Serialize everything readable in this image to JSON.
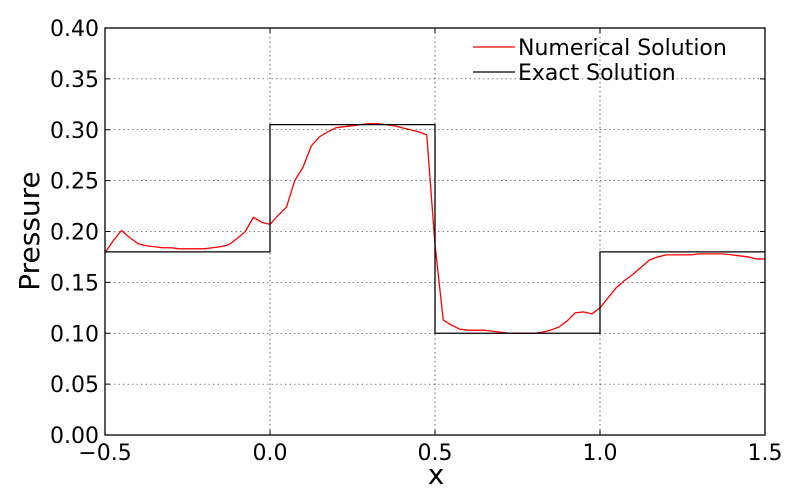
{
  "chart_data": {
    "type": "line",
    "title": "",
    "xlabel": "x",
    "ylabel": "Pressure",
    "xlim": [
      -0.5,
      1.5
    ],
    "ylim": [
      0.0,
      0.4
    ],
    "xticks": [
      -0.5,
      0.0,
      0.5,
      1.0,
      1.5
    ],
    "xtick_labels": [
      "−0.5",
      "0.0",
      "0.5",
      "1.0",
      "1.5"
    ],
    "yticks": [
      0.0,
      0.05,
      0.1,
      0.15,
      0.2,
      0.25,
      0.3,
      0.35,
      0.4
    ],
    "ytick_labels": [
      "0.00",
      "0.05",
      "0.10",
      "0.15",
      "0.20",
      "0.25",
      "0.30",
      "0.35",
      "0.40"
    ],
    "grid": true,
    "legend_position": "top-right",
    "series": [
      {
        "name": "Numerical Solution",
        "color": "#ff0000",
        "x": [
          -0.5,
          -0.475,
          -0.45,
          -0.425,
          -0.4,
          -0.375,
          -0.35,
          -0.325,
          -0.3,
          -0.275,
          -0.25,
          -0.225,
          -0.2,
          -0.175,
          -0.15,
          -0.125,
          -0.1,
          -0.075,
          -0.05,
          -0.025,
          0.0,
          0.025,
          0.05,
          0.075,
          0.1,
          0.125,
          0.15,
          0.175,
          0.2,
          0.225,
          0.25,
          0.275,
          0.3,
          0.325,
          0.35,
          0.375,
          0.4,
          0.425,
          0.45,
          0.475,
          0.5,
          0.525,
          0.55,
          0.575,
          0.6,
          0.625,
          0.65,
          0.675,
          0.7,
          0.725,
          0.75,
          0.775,
          0.8,
          0.825,
          0.85,
          0.875,
          0.9,
          0.925,
          0.95,
          0.975,
          1.0,
          1.025,
          1.05,
          1.075,
          1.1,
          1.125,
          1.15,
          1.175,
          1.2,
          1.225,
          1.25,
          1.275,
          1.3,
          1.325,
          1.35,
          1.375,
          1.4,
          1.425,
          1.45,
          1.475,
          1.5
        ],
        "y": [
          0.179,
          0.191,
          0.201,
          0.194,
          0.188,
          0.186,
          0.185,
          0.184,
          0.184,
          0.183,
          0.183,
          0.183,
          0.183,
          0.184,
          0.185,
          0.187,
          0.193,
          0.2,
          0.214,
          0.209,
          0.207,
          0.216,
          0.224,
          0.25,
          0.263,
          0.284,
          0.293,
          0.298,
          0.302,
          0.303,
          0.304,
          0.305,
          0.306,
          0.306,
          0.305,
          0.304,
          0.302,
          0.3,
          0.298,
          0.295,
          0.187,
          0.113,
          0.108,
          0.104,
          0.103,
          0.103,
          0.103,
          0.102,
          0.101,
          0.1,
          0.1,
          0.1,
          0.1,
          0.101,
          0.103,
          0.106,
          0.112,
          0.12,
          0.121,
          0.119,
          0.125,
          0.135,
          0.145,
          0.152,
          0.158,
          0.165,
          0.172,
          0.175,
          0.177,
          0.177,
          0.177,
          0.177,
          0.178,
          0.178,
          0.178,
          0.178,
          0.177,
          0.176,
          0.175,
          0.173,
          0.173
        ]
      },
      {
        "name": "Exact Solution",
        "color": "#000000",
        "x": [
          -0.5,
          0.0,
          0.0,
          0.5,
          0.5,
          1.0,
          1.0,
          1.5
        ],
        "y": [
          0.18,
          0.18,
          0.305,
          0.305,
          0.1,
          0.1,
          0.18,
          0.18
        ]
      }
    ]
  }
}
